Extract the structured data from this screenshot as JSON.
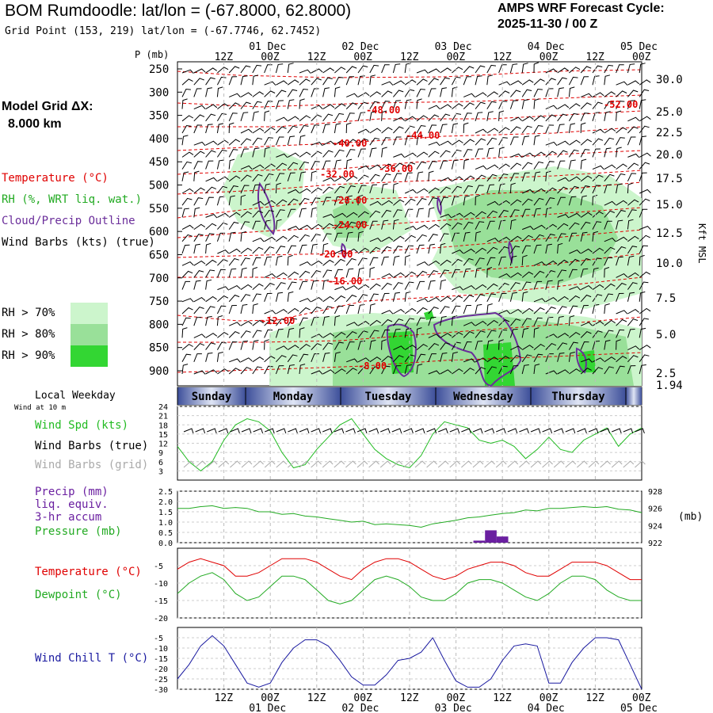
{
  "header": {
    "title": "BOM Rumdoodle:  lat/lon = (-67.8000, 62.8000)",
    "grid_point": "Grid Point (153, 219) lat/lon = (-67.7746, 62.7452)",
    "cycle_title": "AMPS WRF Forecast Cycle:",
    "cycle_value": "2025-11-30 / 00  Z"
  },
  "legend": {
    "model_grid_line1": "Model Grid ΔX:",
    "model_grid_line2": "8.000 km",
    "temperature": "Temperature (°C)",
    "rh": "RH (%, WRT liq. wat.)",
    "cloud": "Cloud/Precip Outline",
    "wind_barbs": "Wind Barbs (kts) (true)",
    "rh70": "RH > 70%",
    "rh80": "RH > 80%",
    "rh90": "RH > 90%",
    "local_weekday": "Local Weekday",
    "wind_at_10m": "Wind at 10 m",
    "wind_spd": "Wind Spd (kts)",
    "wind_barbs_true": "Wind Barbs (true)",
    "wind_barbs_grid": "Wind Barbs (grid)",
    "precip": "Precip (mm)",
    "precip_liq": "liq. equiv.",
    "precip_accum": "3-hr accum",
    "pressure": "Pressure (mb)",
    "temp2": "Temperature (°C)",
    "dewpoint": "Dewpoint (°C)",
    "windchill": "Wind Chill T (°C)"
  },
  "colors": {
    "temperature": "#e00000",
    "rh": "#22aa22",
    "cloud": "#6a2d9a",
    "wind_spd": "#22bb22",
    "grid_barbs": "#aaaaaa",
    "precip": "#6a1fa0",
    "windchill": "#1a1aa0",
    "rh70": "#ccf5cc",
    "rh80": "#99e099",
    "rh90": "#33d633"
  },
  "chart_data": {
    "time_axis": {
      "top_dates": [
        "01 Dec",
        "02 Dec",
        "03 Dec",
        "04 Dec",
        "05 Dec"
      ],
      "top_labels": [
        "12Z",
        "00Z",
        "12Z",
        "00Z",
        "12Z",
        "00Z",
        "12Z",
        "00Z",
        "12Z",
        "00Z"
      ],
      "bottom_labels": [
        "12Z",
        "00Z",
        "12Z",
        "00Z",
        "12Z",
        "00Z",
        "12Z",
        "00Z",
        "12Z",
        "00Z"
      ],
      "bottom_dates": [
        "01 Dec",
        "02 Dec",
        "03 Dec",
        "04 Dec",
        "05 Dec"
      ],
      "forecast_hours_range": [
        0,
        120
      ],
      "weekdays": [
        "Sunday",
        "Monday",
        "Tuesday",
        "Wednesday",
        "Thursday"
      ]
    },
    "upper": {
      "type": "time-height cross section",
      "pressure_label": "P (mb)",
      "pressure_ticks": [
        250,
        300,
        350,
        400,
        450,
        500,
        550,
        600,
        650,
        700,
        750,
        800,
        850,
        900
      ],
      "height_label": "Kft MSL",
      "height_ticks": [
        "30.0",
        "25.0",
        "22.5",
        "20.0",
        "17.5",
        "15.0",
        "12.5",
        "10.0",
        "7.5",
        "5.0",
        "2.5",
        "1.94"
      ],
      "temperature_contours": [
        {
          "label": "-52.00",
          "t": 105,
          "p": 314
        },
        {
          "label": "-48.00",
          "t": 52,
          "p": 339
        },
        {
          "label": "-44.00",
          "t": 61,
          "p": 384
        },
        {
          "label": "-40.00",
          "t": 43,
          "p": 393
        },
        {
          "label": "-36.00",
          "t": 55,
          "p": 438
        },
        {
          "label": "-32.00",
          "t": 39,
          "p": 452
        },
        {
          "label": "-28.00",
          "t": 43,
          "p": 512
        },
        {
          "label": "-24.00",
          "t": 42,
          "p": 580
        },
        {
          "label": "-20.00",
          "t": 39,
          "p": 632
        },
        {
          "label": "-16.00",
          "t": 41,
          "p": 700
        },
        {
          "label": "-12.00",
          "t": 24,
          "p": 792
        },
        {
          "label": "-8.00",
          "t": 48,
          "p": 896
        }
      ]
    },
    "wind": {
      "type": "line",
      "ylabel": "Wind Spd (kts)",
      "ylim": [
        0,
        24
      ],
      "yticks": [
        3,
        6,
        9,
        12,
        15,
        18,
        21,
        24
      ],
      "speed": [
        [
          0,
          11
        ],
        [
          3,
          6
        ],
        [
          6,
          3
        ],
        [
          9,
          6
        ],
        [
          12,
          13
        ],
        [
          15,
          18
        ],
        [
          18,
          20
        ],
        [
          21,
          19
        ],
        [
          24,
          16
        ],
        [
          27,
          9
        ],
        [
          30,
          4
        ],
        [
          33,
          5
        ],
        [
          36,
          10
        ],
        [
          39,
          14
        ],
        [
          42,
          18
        ],
        [
          45,
          20
        ],
        [
          48,
          15
        ],
        [
          51,
          10
        ],
        [
          54,
          7
        ],
        [
          57,
          5
        ],
        [
          60,
          4
        ],
        [
          63,
          8
        ],
        [
          66,
          15
        ],
        [
          69,
          19
        ],
        [
          72,
          18
        ],
        [
          75,
          17
        ],
        [
          78,
          13
        ],
        [
          81,
          12
        ],
        [
          84,
          13
        ],
        [
          87,
          11
        ],
        [
          90,
          7
        ],
        [
          93,
          10
        ],
        [
          96,
          14
        ],
        [
          99,
          10
        ],
        [
          102,
          9
        ],
        [
          105,
          13
        ],
        [
          108,
          15
        ],
        [
          111,
          17
        ],
        [
          114,
          11
        ],
        [
          117,
          15
        ],
        [
          120,
          17
        ]
      ]
    },
    "precip_pressure": {
      "type": "bar+line",
      "precip_ylim": [
        0,
        2.5
      ],
      "precip_yticks": [
        "0.0",
        "0.5",
        "1.0",
        "1.5",
        "2.0",
        "2.5"
      ],
      "pressure_ylim": [
        922,
        928
      ],
      "pressure_yticks": [
        "922",
        "924",
        "926",
        "928"
      ],
      "pressure_unit": "(mb)",
      "pressure": [
        [
          0,
          926.0
        ],
        [
          3,
          926.0
        ],
        [
          6,
          926.2
        ],
        [
          9,
          926.3
        ],
        [
          12,
          926.0
        ],
        [
          15,
          926.1
        ],
        [
          18,
          926.0
        ],
        [
          21,
          925.6
        ],
        [
          24,
          925.6
        ],
        [
          27,
          925.3
        ],
        [
          30,
          925.4
        ],
        [
          33,
          925.1
        ],
        [
          36,
          925.0
        ],
        [
          39,
          924.8
        ],
        [
          42,
          924.6
        ],
        [
          45,
          924.4
        ],
        [
          48,
          924.5
        ],
        [
          51,
          924.1
        ],
        [
          54,
          924.2
        ],
        [
          57,
          924.1
        ],
        [
          60,
          924.0
        ],
        [
          63,
          923.8
        ],
        [
          66,
          924.2
        ],
        [
          69,
          924.4
        ],
        [
          72,
          924.6
        ],
        [
          75,
          924.9
        ],
        [
          78,
          925.0
        ],
        [
          81,
          925.2
        ],
        [
          84,
          925.4
        ],
        [
          87,
          925.5
        ],
        [
          90,
          925.8
        ],
        [
          93,
          925.7
        ],
        [
          96,
          926.0
        ],
        [
          99,
          926.0
        ],
        [
          102,
          926.1
        ],
        [
          105,
          926.2
        ],
        [
          108,
          926.1
        ],
        [
          111,
          926.2
        ],
        [
          114,
          925.9
        ],
        [
          117,
          925.8
        ],
        [
          120,
          925.5
        ]
      ],
      "precip": [
        [
          78,
          0.1
        ],
        [
          81,
          0.6
        ],
        [
          84,
          0.3
        ]
      ]
    },
    "temperature": {
      "type": "line",
      "ylim": [
        -20,
        0
      ],
      "yticks": [
        -5,
        -10,
        -15,
        -20
      ],
      "temperature": [
        [
          0,
          -6
        ],
        [
          3,
          -4
        ],
        [
          6,
          -3
        ],
        [
          9,
          -4
        ],
        [
          12,
          -5
        ],
        [
          15,
          -8
        ],
        [
          18,
          -8
        ],
        [
          21,
          -7
        ],
        [
          24,
          -5
        ],
        [
          27,
          -3
        ],
        [
          30,
          -3
        ],
        [
          33,
          -3
        ],
        [
          36,
          -4
        ],
        [
          39,
          -6
        ],
        [
          42,
          -8
        ],
        [
          45,
          -9
        ],
        [
          48,
          -6
        ],
        [
          51,
          -4
        ],
        [
          54,
          -3
        ],
        [
          57,
          -3
        ],
        [
          60,
          -4
        ],
        [
          63,
          -6
        ],
        [
          66,
          -8
        ],
        [
          69,
          -9
        ],
        [
          72,
          -8
        ],
        [
          75,
          -6
        ],
        [
          78,
          -5
        ],
        [
          81,
          -4
        ],
        [
          84,
          -4
        ],
        [
          87,
          -5
        ],
        [
          90,
          -7
        ],
        [
          93,
          -8
        ],
        [
          96,
          -8
        ],
        [
          99,
          -6
        ],
        [
          102,
          -4
        ],
        [
          105,
          -4
        ],
        [
          108,
          -4
        ],
        [
          111,
          -5
        ],
        [
          114,
          -7
        ],
        [
          117,
          -9
        ],
        [
          120,
          -9
        ]
      ],
      "dewpoint": [
        [
          0,
          -13
        ],
        [
          3,
          -10
        ],
        [
          6,
          -8
        ],
        [
          9,
          -7
        ],
        [
          12,
          -9
        ],
        [
          15,
          -13
        ],
        [
          18,
          -15
        ],
        [
          21,
          -14
        ],
        [
          24,
          -11
        ],
        [
          27,
          -8
        ],
        [
          30,
          -8
        ],
        [
          33,
          -9
        ],
        [
          36,
          -12
        ],
        [
          39,
          -15
        ],
        [
          42,
          -16
        ],
        [
          45,
          -15
        ],
        [
          48,
          -12
        ],
        [
          51,
          -9
        ],
        [
          54,
          -8
        ],
        [
          57,
          -9
        ],
        [
          60,
          -11
        ],
        [
          63,
          -14
        ],
        [
          66,
          -15
        ],
        [
          69,
          -15
        ],
        [
          72,
          -13
        ],
        [
          75,
          -10
        ],
        [
          78,
          -9
        ],
        [
          81,
          -9
        ],
        [
          84,
          -10
        ],
        [
          87,
          -12
        ],
        [
          90,
          -14
        ],
        [
          93,
          -15
        ],
        [
          96,
          -13
        ],
        [
          99,
          -10
        ],
        [
          102,
          -8
        ],
        [
          105,
          -8
        ],
        [
          108,
          -9
        ],
        [
          111,
          -12
        ],
        [
          114,
          -14
        ],
        [
          117,
          -15
        ],
        [
          120,
          -15
        ]
      ]
    },
    "windchill": {
      "type": "line",
      "ylim": [
        -30,
        0
      ],
      "yticks": [
        -5,
        -10,
        -15,
        -20,
        -25,
        -30
      ],
      "values": [
        [
          0,
          -25
        ],
        [
          3,
          -18
        ],
        [
          6,
          -9
        ],
        [
          9,
          -4
        ],
        [
          12,
          -9
        ],
        [
          15,
          -18
        ],
        [
          18,
          -27
        ],
        [
          21,
          -29
        ],
        [
          24,
          -27
        ],
        [
          27,
          -17
        ],
        [
          30,
          -10
        ],
        [
          33,
          -6
        ],
        [
          36,
          -6
        ],
        [
          39,
          -9
        ],
        [
          42,
          -16
        ],
        [
          45,
          -24
        ],
        [
          48,
          -28
        ],
        [
          51,
          -28
        ],
        [
          54,
          -23
        ],
        [
          57,
          -16
        ],
        [
          60,
          -15
        ],
        [
          63,
          -12
        ],
        [
          66,
          -5
        ],
        [
          69,
          -16
        ],
        [
          72,
          -26
        ],
        [
          75,
          -29
        ],
        [
          78,
          -29
        ],
        [
          81,
          -25
        ],
        [
          84,
          -16
        ],
        [
          87,
          -9
        ],
        [
          90,
          -8
        ],
        [
          93,
          -9
        ],
        [
          96,
          -27
        ],
        [
          99,
          -27
        ],
        [
          102,
          -17
        ],
        [
          105,
          -10
        ],
        [
          108,
          -5
        ],
        [
          111,
          -5
        ],
        [
          114,
          -6
        ],
        [
          117,
          -18
        ],
        [
          120,
          -30
        ]
      ]
    }
  }
}
